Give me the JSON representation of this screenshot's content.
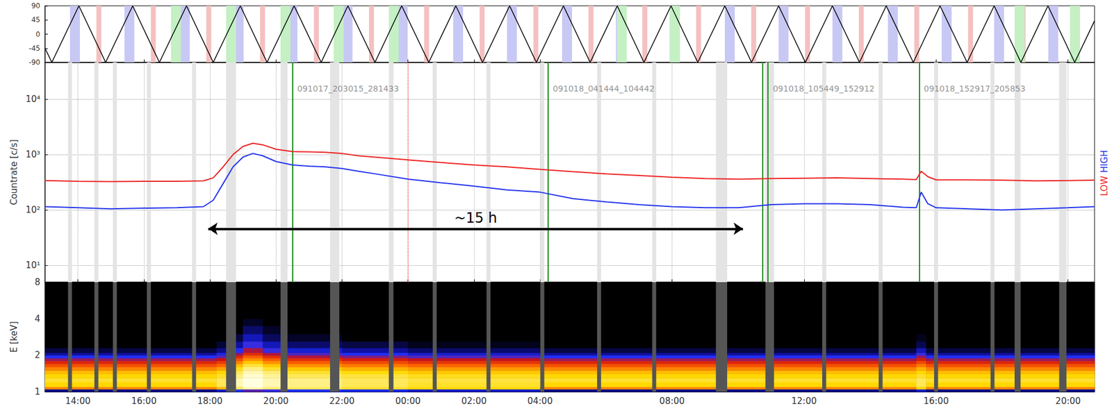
{
  "chart_data": [
    {
      "type": "line",
      "x": [
        13.0,
        13.21,
        14.03,
        14.84,
        15.66,
        16.47,
        17.29,
        18.1,
        18.92,
        19.73,
        20.55,
        21.37,
        22.18,
        23.0,
        23.81,
        24.63,
        25.45,
        26.26,
        27.08,
        27.89,
        28.71,
        29.52,
        30.34,
        31.15,
        31.97,
        32.78,
        33.6,
        34.41,
        35.23,
        36.04,
        36.86,
        37.68,
        38.49,
        39.31,
        40.12,
        40.94,
        41.76,
        42.57,
        43.39,
        44.2,
        44.8
      ],
      "values": [
        -44,
        -90,
        90,
        -90,
        90,
        -90,
        90,
        -90,
        90,
        -90,
        90,
        -90,
        90,
        -90,
        90,
        -90,
        90,
        -90,
        90,
        -90,
        90,
        -90,
        90,
        -90,
        90,
        -90,
        90,
        -90,
        90,
        -90,
        90,
        -90,
        90,
        -90,
        90,
        -90,
        90,
        -90,
        90,
        -90,
        42
      ],
      "color": "#000000",
      "xlim": [
        13.0,
        44.8
      ],
      "xticks": [
        14,
        16,
        18,
        20,
        22,
        24,
        26,
        28,
        32,
        36,
        40,
        44
      ],
      "ylim": [
        -90,
        90
      ],
      "yticks": [
        -90,
        -45,
        0,
        45,
        90
      ],
      "grid": false,
      "tick_labels": "y",
      "bands": [
        {
          "color": "#c8c8f5",
          "ranges": [
            [
              13.76,
              14.06
            ],
            [
              15.41,
              15.71
            ],
            [
              17.09,
              17.39
            ],
            [
              18.72,
              19.02
            ],
            [
              20.35,
              20.65
            ],
            [
              22.02,
              22.32
            ],
            [
              23.69,
              23.99
            ],
            [
              25.37,
              25.67
            ],
            [
              27.0,
              27.3
            ],
            [
              28.67,
              28.97
            ],
            [
              30.3,
              30.6
            ],
            [
              31.93,
              32.23
            ],
            [
              33.6,
              33.9
            ],
            [
              35.23,
              35.53
            ],
            [
              36.86,
              37.16
            ],
            [
              38.54,
              38.84
            ],
            [
              40.17,
              40.47
            ],
            [
              41.76,
              42.06
            ],
            [
              43.4,
              43.7
            ]
          ]
        },
        {
          "color": "#f5c0c0",
          "ranges": [
            [
              14.56,
              14.71
            ],
            [
              16.21,
              16.36
            ],
            [
              17.89,
              18.04
            ],
            [
              19.52,
              19.67
            ],
            [
              21.15,
              21.3
            ],
            [
              22.82,
              22.97
            ],
            [
              24.49,
              24.64
            ],
            [
              26.17,
              26.32
            ],
            [
              27.8,
              27.95
            ],
            [
              29.47,
              29.62
            ],
            [
              31.1,
              31.25
            ],
            [
              32.73,
              32.88
            ],
            [
              34.4,
              34.55
            ],
            [
              36.03,
              36.18
            ],
            [
              37.66,
              37.81
            ],
            [
              39.34,
              39.49
            ],
            [
              40.97,
              41.12
            ],
            [
              42.56,
              42.71
            ]
          ]
        },
        {
          "color": "#c4f0c4",
          "ranges": [
            [
              16.82,
              17.12
            ],
            [
              18.49,
              18.79
            ],
            [
              20.14,
              20.44
            ],
            [
              21.75,
              22.05
            ],
            [
              23.42,
              23.72
            ],
            [
              30.33,
              30.63
            ],
            [
              31.94,
              32.24
            ],
            [
              42.38,
              42.68
            ],
            [
              44.06,
              44.36
            ]
          ]
        }
      ]
    },
    {
      "type": "line",
      "log": "y",
      "ylabel": "Countrate [c/s]",
      "x": [
        13.0,
        14.0,
        15.0,
        16.0,
        17.0,
        17.8,
        18.1,
        18.4,
        18.7,
        19.0,
        19.3,
        19.6,
        20.0,
        20.5,
        21.0,
        21.5,
        22.0,
        22.5,
        23.0,
        24.0,
        25.0,
        26.0,
        27.0,
        28.0,
        29.0,
        30.0,
        31.0,
        32.0,
        33.0,
        34.0,
        35.0,
        36.0,
        37.0,
        38.0,
        39.0,
        39.4,
        39.55,
        39.75,
        40.0,
        41.0,
        42.0,
        43.0,
        44.0,
        44.8
      ],
      "series": [
        {
          "name": "LOW",
          "color": "#ee2222",
          "values": [
            340,
            330,
            325,
            330,
            330,
            335,
            380,
            600,
            1000,
            1400,
            1600,
            1500,
            1250,
            1130,
            1120,
            1100,
            1050,
            950,
            900,
            800,
            720,
            650,
            600,
            540,
            490,
            450,
            420,
            390,
            370,
            360,
            370,
            375,
            380,
            370,
            360,
            355,
            500,
            400,
            350,
            350,
            345,
            335,
            340,
            345
          ]
        },
        {
          "name": "HIGH",
          "color": "#2233ee",
          "values": [
            115,
            110,
            105,
            108,
            110,
            115,
            150,
            300,
            600,
            900,
            1050,
            950,
            750,
            650,
            620,
            600,
            560,
            500,
            450,
            360,
            310,
            270,
            230,
            210,
            160,
            140,
            125,
            115,
            110,
            110,
            125,
            130,
            130,
            125,
            112,
            110,
            210,
            130,
            110,
            105,
            100,
            105,
            110,
            115
          ]
        }
      ],
      "legend": "right",
      "xlim": [
        13.0,
        44.8
      ],
      "xticks": [
        14,
        16,
        18,
        20,
        22,
        24,
        26,
        28,
        32,
        36,
        40,
        44
      ],
      "ylim": [
        5,
        46000
      ],
      "yticks": [
        {
          "value": 10,
          "label": "10¹"
        },
        {
          "value": 100,
          "label": "10²"
        },
        {
          "value": 1000,
          "label": "10³"
        },
        {
          "value": 10000,
          "label": "10⁴"
        }
      ],
      "grid": true,
      "tick_labels": "y",
      "gaps": [
        [
          13.7,
          13.82
        ],
        [
          14.5,
          14.62
        ],
        [
          15.06,
          15.18
        ],
        [
          16.09,
          16.21
        ],
        [
          17.46,
          17.58
        ],
        [
          18.49,
          18.79
        ],
        [
          20.14,
          20.35
        ],
        [
          21.64,
          21.92
        ],
        [
          23.42,
          23.56
        ],
        [
          24.75,
          24.87
        ],
        [
          26.38,
          26.5
        ],
        [
          28.01,
          28.13
        ],
        [
          29.73,
          29.85
        ],
        [
          31.4,
          31.52
        ],
        [
          33.33,
          33.67
        ],
        [
          34.83,
          35.09
        ],
        [
          36.55,
          36.67
        ],
        [
          38.26,
          38.38
        ],
        [
          39.94,
          40.06
        ],
        [
          41.65,
          41.77
        ],
        [
          42.38,
          42.56
        ],
        [
          43.73,
          43.95
        ]
      ],
      "segments": [
        {
          "x": 20.504,
          "label": "091017_203015_281433"
        },
        {
          "x": 28.246,
          "label": "091018_041444_104442"
        },
        {
          "x": 34.914,
          "label": "091018_105449_152912"
        },
        {
          "x": 39.488,
          "label": "091018_152917_205853"
        }
      ],
      "segment_ends": [
        34.745
      ],
      "reference_line": {
        "x": 24,
        "color": "#ff6666",
        "line_style": "dotted"
      },
      "annotations": [
        {
          "text": "~15 h",
          "x0": 17.95,
          "x1": 34.15,
          "y": 46
        }
      ]
    },
    {
      "type": "heatmap",
      "log": "y",
      "ylabel": "E [keV]",
      "xlim": [
        13.0,
        44.8
      ],
      "xticks": [
        {
          "value": 14,
          "label": "14:00"
        },
        {
          "value": 16,
          "label": "16:00"
        },
        {
          "value": 18,
          "label": "18:00"
        },
        {
          "value": 20,
          "label": "20:00"
        },
        {
          "value": 22,
          "label": "22:00"
        },
        {
          "value": 24,
          "label": "00:00"
        },
        {
          "value": 26,
          "label": "02:00"
        },
        {
          "value": 28,
          "label": "04:00"
        },
        {
          "value": 32,
          "label": "08:00"
        },
        {
          "value": 36,
          "label": "12:00"
        },
        {
          "value": 40,
          "label": "16:00"
        },
        {
          "value": 44,
          "label": "20:00"
        }
      ],
      "ylim": [
        1,
        8
      ],
      "yticks": [
        1,
        2,
        4,
        8
      ],
      "grid": false,
      "time_bins": [
        13.0,
        18.2,
        18.6,
        19.0,
        19.6,
        20.2,
        22.0,
        24.0,
        28.0,
        39.4,
        39.7,
        44.8
      ],
      "energy_bins": [
        1.0,
        1.05,
        1.1,
        1.2,
        1.3,
        1.4,
        1.5,
        1.6,
        1.7,
        1.8,
        1.9,
        2.0,
        2.1,
        2.3,
        2.6,
        3.0,
        3.5,
        4,
        8
      ],
      "color_range": [
        0,
        100
      ],
      "cells": [
        [
          10,
          60,
          75,
          80,
          75,
          70,
          60,
          50,
          40,
          30,
          20,
          12,
          5,
          0,
          0,
          0,
          0,
          0
        ],
        [
          15,
          70,
          85,
          85,
          80,
          75,
          65,
          55,
          45,
          35,
          25,
          18,
          10,
          4,
          0,
          0,
          0,
          0
        ],
        [
          20,
          85,
          95,
          95,
          90,
          85,
          78,
          70,
          60,
          50,
          40,
          30,
          20,
          12,
          5,
          0,
          0,
          0
        ],
        [
          25,
          95,
          100,
          100,
          98,
          95,
          90,
          82,
          72,
          62,
          52,
          42,
          32,
          22,
          14,
          8,
          3,
          0
        ],
        [
          22,
          88,
          95,
          95,
          92,
          88,
          80,
          72,
          62,
          52,
          42,
          32,
          22,
          14,
          7,
          3,
          0,
          0
        ],
        [
          20,
          85,
          90,
          90,
          85,
          80,
          72,
          62,
          52,
          42,
          32,
          24,
          16,
          8,
          3,
          0,
          0,
          0
        ],
        [
          18,
          80,
          85,
          85,
          82,
          76,
          68,
          58,
          48,
          38,
          28,
          20,
          12,
          5,
          0,
          0,
          0,
          0
        ],
        [
          15,
          75,
          80,
          82,
          78,
          72,
          64,
          54,
          44,
          34,
          24,
          16,
          8,
          2,
          0,
          0,
          0,
          0
        ],
        [
          10,
          60,
          75,
          80,
          75,
          70,
          60,
          50,
          40,
          30,
          20,
          12,
          5,
          0,
          0,
          0,
          0,
          0
        ],
        [
          15,
          75,
          85,
          85,
          80,
          75,
          68,
          58,
          48,
          38,
          30,
          22,
          14,
          6,
          2,
          0,
          0,
          0
        ],
        [
          10,
          60,
          75,
          80,
          75,
          70,
          60,
          50,
          40,
          30,
          20,
          12,
          5,
          0,
          0,
          0,
          0,
          0
        ]
      ],
      "gaps": [
        [
          13.7,
          13.82
        ],
        [
          14.5,
          14.62
        ],
        [
          15.06,
          15.18
        ],
        [
          16.09,
          16.21
        ],
        [
          17.46,
          17.58
        ],
        [
          18.49,
          18.79
        ],
        [
          20.14,
          20.35
        ],
        [
          21.64,
          21.92
        ],
        [
          23.42,
          23.56
        ],
        [
          24.75,
          24.87
        ],
        [
          26.38,
          26.5
        ],
        [
          28.01,
          28.13
        ],
        [
          29.73,
          29.85
        ],
        [
          31.4,
          31.52
        ],
        [
          33.33,
          33.67
        ],
        [
          34.83,
          35.09
        ],
        [
          36.55,
          36.67
        ],
        [
          38.26,
          38.38
        ],
        [
          39.94,
          40.06
        ],
        [
          41.65,
          41.77
        ],
        [
          42.38,
          42.56
        ],
        [
          43.73,
          43.95
        ]
      ]
    }
  ]
}
